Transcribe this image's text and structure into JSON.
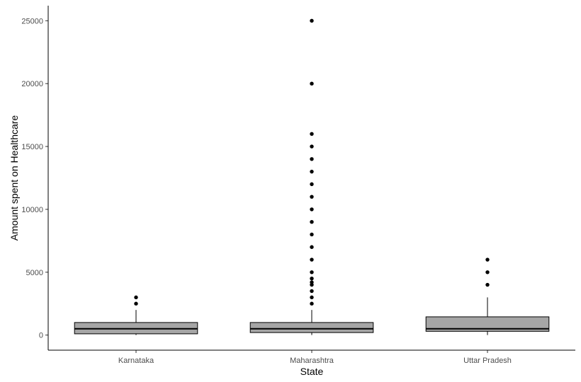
{
  "chart_data": {
    "type": "boxplot",
    "xlabel": "State",
    "ylabel": "Amount spent on Healthcare",
    "categories": [
      "Karnataka",
      "Maharashtra",
      "Uttar Pradesh"
    ],
    "ylim": [
      -1200,
      26200
    ],
    "y_ticks": [
      0,
      5000,
      10000,
      15000,
      20000,
      25000
    ],
    "grid": false,
    "legend": "none",
    "box_fill": "#a6a6a6",
    "boxes": [
      {
        "category": "Karnataka",
        "whisker_low": 0,
        "q1": 100,
        "median": 500,
        "q3": 1000,
        "whisker_high": 2000,
        "outliers": [
          2500,
          3000
        ]
      },
      {
        "category": "Maharashtra",
        "whisker_low": 0,
        "q1": 200,
        "median": 500,
        "q3": 1000,
        "whisker_high": 2000,
        "outliers": [
          2500,
          3000,
          3500,
          4000,
          4200,
          4500,
          5000,
          6000,
          7000,
          8000,
          9000,
          10000,
          11000,
          12000,
          13000,
          14000,
          15000,
          16000,
          20000,
          25000
        ]
      },
      {
        "category": "Uttar Pradesh",
        "whisker_low": 0,
        "q1": 300,
        "median": 500,
        "q3": 1450,
        "whisker_high": 3000,
        "outliers": [
          4000,
          5000,
          6000
        ]
      }
    ]
  }
}
